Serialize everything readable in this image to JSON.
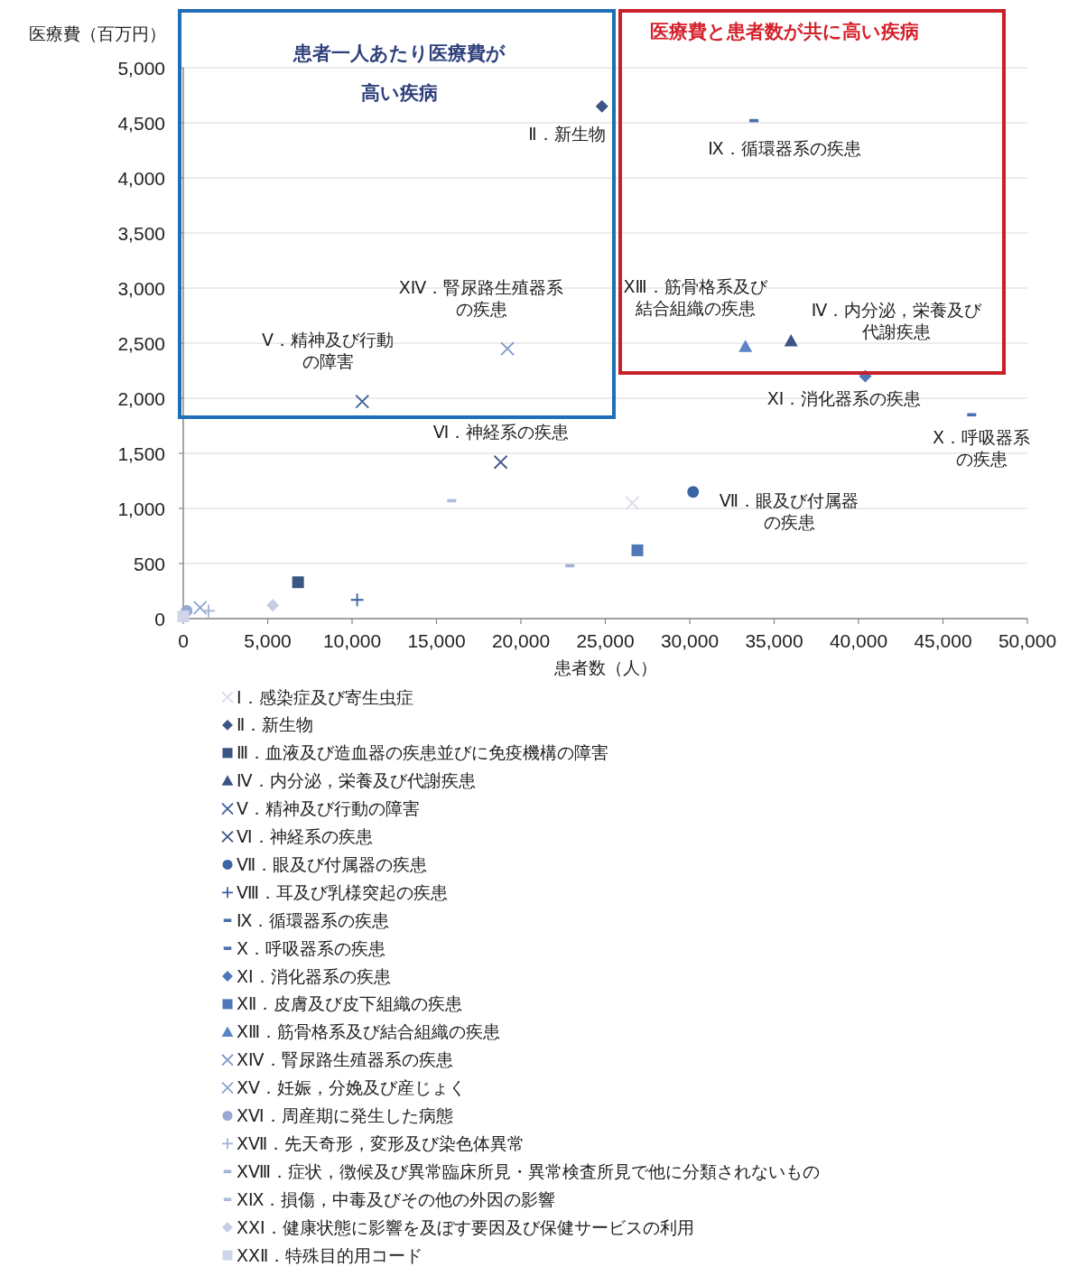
{
  "chart_data": {
    "type": "scatter",
    "xlabel": "患者数（人）",
    "ylabel": "医療費（百万円）",
    "xlim": [
      0,
      50000
    ],
    "ylim": [
      0,
      5000
    ],
    "xticks": [
      {
        "value": 0,
        "label": "0"
      },
      {
        "value": 5000,
        "label": "5,000"
      },
      {
        "value": 10000,
        "label": "10,000"
      },
      {
        "value": 15000,
        "label": "15,000"
      },
      {
        "value": 20000,
        "label": "20,000"
      },
      {
        "value": 25000,
        "label": "25,000"
      },
      {
        "value": 30000,
        "label": "30,000"
      },
      {
        "value": 35000,
        "label": "35,000"
      },
      {
        "value": 40000,
        "label": "40,000"
      },
      {
        "value": 45000,
        "label": "45,000"
      },
      {
        "value": 50000,
        "label": "50,000"
      }
    ],
    "yticks": [
      {
        "value": 0,
        "label": "0"
      },
      {
        "value": 500,
        "label": "500"
      },
      {
        "value": 1000,
        "label": "1,000"
      },
      {
        "value": 1500,
        "label": "1,500"
      },
      {
        "value": 2000,
        "label": "2,000"
      },
      {
        "value": 2500,
        "label": "2,500"
      },
      {
        "value": 3000,
        "label": "3,000"
      },
      {
        "value": 3500,
        "label": "3,500"
      },
      {
        "value": 4000,
        "label": "4,000"
      },
      {
        "value": 4500,
        "label": "4,500"
      },
      {
        "value": 5000,
        "label": "5,000"
      }
    ],
    "grid": "y",
    "legend": "bottom",
    "series": [
      {
        "name": "Ⅰ．感染症及び寄生虫症",
        "color": "#d5dbea",
        "marker": "cross",
        "x": [
          26600
        ],
        "values": [
          1050
        ]
      },
      {
        "name": "Ⅱ．新生物",
        "color": "#3b5585",
        "marker": "diamond",
        "x": [
          24800
        ],
        "values": [
          4650
        ]
      },
      {
        "name": "Ⅲ．血液及び造血器の疾患並びに免疫機構の障害",
        "color": "#3b5585",
        "marker": "square",
        "x": [
          6800
        ],
        "values": [
          330
        ]
      },
      {
        "name": "Ⅳ．内分泌，栄養及び代謝疾患",
        "color": "#3b5585",
        "marker": "triangle",
        "x": [
          36000
        ],
        "values": [
          2520
        ]
      },
      {
        "name": "Ⅴ．精神及び行動の障害",
        "color": "#3b5f9e",
        "marker": "cross",
        "x": [
          10600
        ],
        "values": [
          1970
        ]
      },
      {
        "name": "Ⅵ．神経系の疾患",
        "color": "#3b5585",
        "marker": "cross",
        "x": [
          18800
        ],
        "values": [
          1420
        ]
      },
      {
        "name": "Ⅶ．眼及び付属器の疾患",
        "color": "#3b64a4",
        "marker": "circle",
        "x": [
          30200
        ],
        "values": [
          1150
        ]
      },
      {
        "name": "Ⅷ．耳及び乳様突起の疾患",
        "color": "#3b5f9e",
        "marker": "plus",
        "x": [
          10300
        ],
        "values": [
          170
        ]
      },
      {
        "name": "Ⅸ．循環器系の疾患",
        "color": "#4a70b0",
        "x": [
          33800
        ],
        "values": [
          4520
        ]
      },
      {
        "name": "Ⅹ．呼吸器系の疾患",
        "color": "#4a70b0",
        "x": [
          46700
        ],
        "values": [
          1850
        ]
      },
      {
        "name": "ⅩⅠ．消化器系の疾患",
        "color": "#4e78b8",
        "marker": "diamond",
        "x": [
          40400
        ],
        "values": [
          2200
        ]
      },
      {
        "name": "ⅩⅡ．皮膚及び皮下組織の疾患",
        "color": "#4e78b8",
        "marker": "square",
        "x": [
          26900
        ],
        "values": [
          620
        ]
      },
      {
        "name": "ⅩⅢ．筋骨格系及び結合組織の疾患",
        "color": "#5a84c4",
        "marker": "triangle",
        "x": [
          33300
        ],
        "values": [
          2470
        ]
      },
      {
        "name": "ⅩⅣ．腎尿路生殖器系の疾患",
        "color": "#7b98cf",
        "marker": "cross",
        "x": [
          19200
        ],
        "values": [
          2450
        ]
      },
      {
        "name": "ⅩⅤ．妊娠，分娩及び産じょく",
        "color": "#8aa2d3",
        "marker": "cross",
        "x": [
          1000
        ],
        "values": [
          100
        ]
      },
      {
        "name": "ⅩⅥ．周産期に発生した病態",
        "color": "#97a8d3",
        "marker": "circle",
        "x": [
          200
        ],
        "values": [
          70
        ]
      },
      {
        "name": "ⅩⅦ．先天奇形，変形及び染色体異常",
        "color": "#9fb2da",
        "marker": "plus",
        "x": [
          1500
        ],
        "values": [
          70
        ]
      },
      {
        "name": "ⅩⅧ．症状，徴候及び異常臨床所見・異常検査所見で他に分類されないもの",
        "color": "#a3b2d8",
        "x": [
          22900
        ],
        "values": [
          480
        ]
      },
      {
        "name": "ⅩⅨ．損傷，中毒及びその他の外因の影響",
        "color": "#aebbdc",
        "x": [
          15900
        ],
        "values": [
          1070
        ]
      },
      {
        "name": "ⅩⅩⅠ．健康状態に影響を及ぼす要因及び保健サービスの利用",
        "color": "#c5cce3",
        "marker": "diamond",
        "x": [
          5300
        ],
        "values": [
          120
        ]
      },
      {
        "name": "ⅩⅩⅡ．特殊目的用コード",
        "color": "#d0d6ea",
        "marker": "square",
        "x": [
          0
        ],
        "values": [
          20
        ]
      }
    ],
    "annotations": [
      "患者一人あたり医療費が高い疾病",
      "医療費と患者数が共に高い疾病",
      "Ⅱ．新生物",
      "Ⅸ．循環器系の疾患",
      "ⅩⅣ．腎尿路生殖器系の疾患",
      "ⅩⅢ．筋骨格系及び結合組織の疾患",
      "Ⅳ．内分泌，栄養及び代謝疾患",
      "Ⅴ．精神及び行動の障害",
      "ⅩⅠ．消化器系の疾患",
      "Ⅵ．神経系の疾患",
      "Ⅹ．呼吸器系の疾患",
      "Ⅶ．眼及び付属器の疾患"
    ]
  }
}
